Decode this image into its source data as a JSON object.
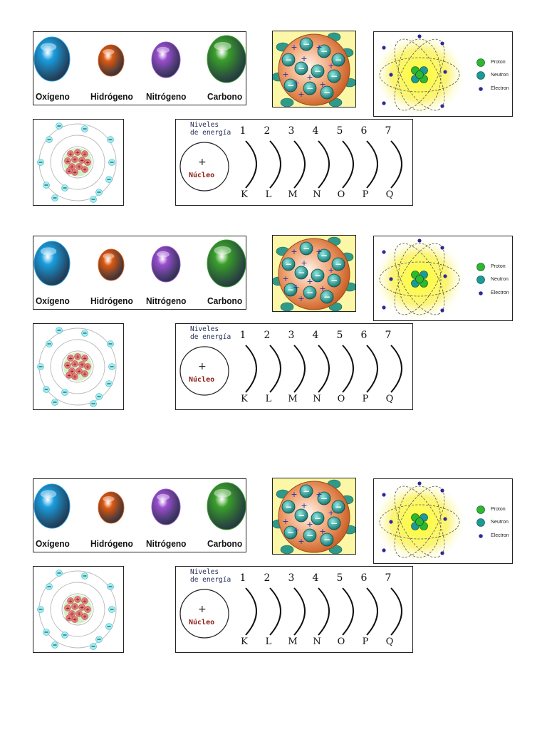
{
  "molecules": {
    "labels": [
      "Oxígeno",
      "Hidrógeno",
      "Nitrógeno",
      "Carbono"
    ],
    "colors": [
      "#1a9fe0",
      "#e05a10",
      "#9b4fd0",
      "#3aa02a"
    ]
  },
  "atom_legend": {
    "proton": "Proton",
    "neutron": "Neutron",
    "electron": "Electron",
    "proton_color": "#2db82d",
    "neutron_color": "#1a9a9a",
    "electron_color": "#2a2a9a"
  },
  "energy_levels": {
    "title_line1": "Niveles",
    "title_line2": "de energía",
    "nucleus_label": "Núcleo",
    "nucleus_sign": "+",
    "numbers": [
      "1",
      "2",
      "3",
      "4",
      "5",
      "6",
      "7"
    ],
    "letters": [
      "K",
      "L",
      "M",
      "N",
      "O",
      "P",
      "Q"
    ]
  },
  "pudding": {
    "minus_sign": "−",
    "plus_sign": "+"
  }
}
